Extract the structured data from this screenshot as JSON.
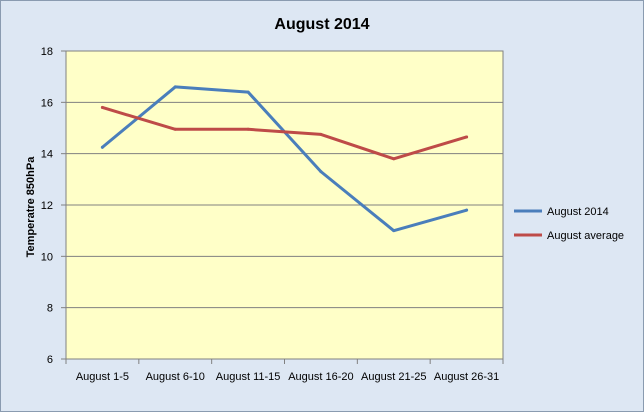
{
  "colors": {
    "chart_background": "#dde7f3",
    "plot_background": "#ffffc8",
    "gridline": "#808080",
    "axis": "#808080"
  },
  "chart_data": {
    "type": "line",
    "title": "August 2014",
    "xlabel": "",
    "ylabel": "Temperatre 850hPa",
    "categories": [
      "August 1-5",
      "August 6-10",
      "August 11-15",
      "August 16-20",
      "August 21-25",
      "August 26-31"
    ],
    "ylim": [
      6,
      18
    ],
    "yticks": [
      6,
      8,
      10,
      12,
      14,
      16,
      18
    ],
    "grid": true,
    "legend_position": "right",
    "series": [
      {
        "name": "August 2014",
        "color": "#4a7ebb",
        "values": [
          14.25,
          16.6,
          16.4,
          13.3,
          11.0,
          11.8
        ]
      },
      {
        "name": "August average",
        "color": "#be4b48",
        "values": [
          15.8,
          14.95,
          14.95,
          14.75,
          13.8,
          14.65
        ]
      }
    ]
  }
}
